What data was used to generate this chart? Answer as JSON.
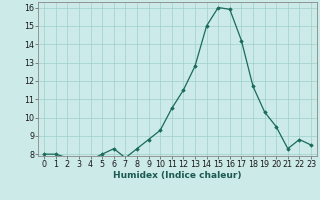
{
  "x": [
    0,
    1,
    2,
    3,
    4,
    5,
    6,
    7,
    8,
    9,
    10,
    11,
    12,
    13,
    14,
    15,
    16,
    17,
    18,
    19,
    20,
    21,
    22,
    23
  ],
  "y": [
    8.0,
    8.0,
    7.8,
    7.7,
    7.7,
    8.0,
    8.3,
    7.8,
    8.3,
    8.8,
    9.3,
    10.5,
    11.5,
    12.8,
    15.0,
    16.0,
    15.9,
    14.2,
    11.7,
    10.3,
    9.5,
    8.3,
    8.8,
    8.5
  ],
  "xlabel": "Humidex (Indice chaleur)",
  "ylim_min": 7.9,
  "ylim_max": 16.3,
  "xlim_min": -0.5,
  "xlim_max": 23.5,
  "yticks": [
    8,
    9,
    10,
    11,
    12,
    13,
    14,
    15,
    16
  ],
  "xticks": [
    0,
    1,
    2,
    3,
    4,
    5,
    6,
    7,
    8,
    9,
    10,
    11,
    12,
    13,
    14,
    15,
    16,
    17,
    18,
    19,
    20,
    21,
    22,
    23
  ],
  "line_color": "#1a6b5a",
  "marker_color": "#1a6b5a",
  "bg_color": "#cceae8",
  "grid_color": "#9ecfcc",
  "xlabel_fontsize": 6.5,
  "tick_fontsize": 5.8,
  "xlabel_color": "#1a5a50"
}
